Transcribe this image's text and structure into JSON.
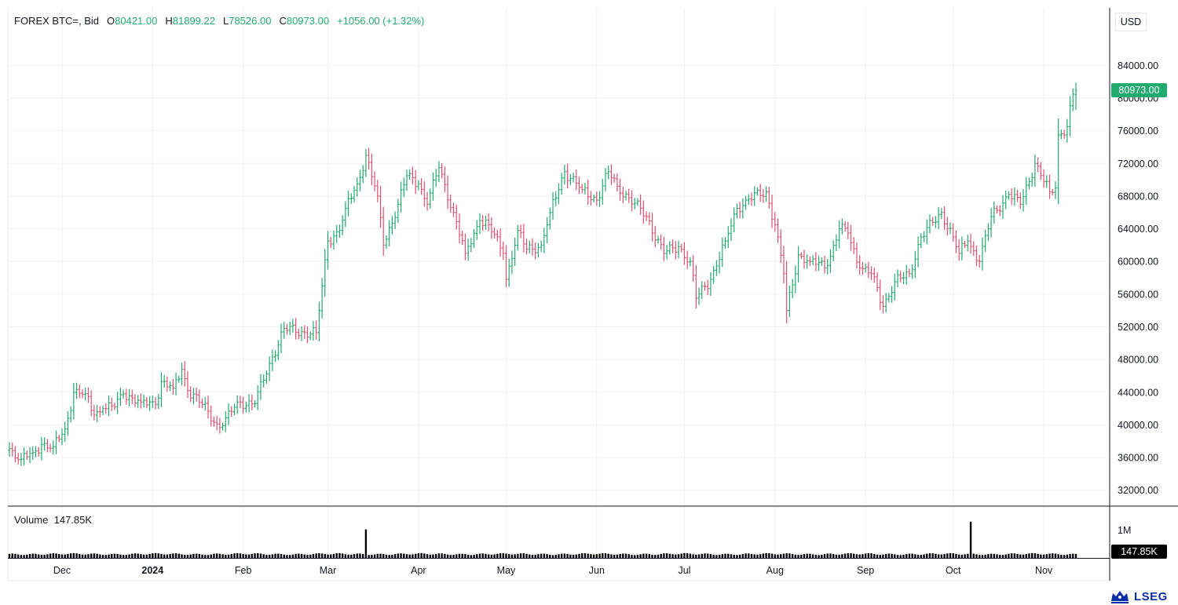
{
  "header": {
    "symbol": "FOREX BTC=, Bid",
    "open_label": "O",
    "open": "80421.00",
    "high_label": "H",
    "high": "81899.22",
    "low_label": "L",
    "low": "78526.00",
    "close_label": "C",
    "close": "80973.00",
    "change": "+1056.00 (+1.32%)"
  },
  "currency": "USD",
  "current_price_badge": "80973.00",
  "volume": {
    "label": "Volume",
    "value": "147.85K",
    "badge": "147.85K",
    "axis_tick": "1M"
  },
  "logo": {
    "text": "LSEG"
  },
  "colors": {
    "up": "#22ab6e",
    "down": "#e0506e",
    "grid": "#f0f2f5",
    "volume": "#000000",
    "badge_up": "#22ab6e"
  },
  "chart_data": {
    "type": "ohlc",
    "title": "FOREX BTC=, Bid",
    "ylabel": "USD",
    "ylim": [
      30000,
      86000
    ],
    "grid": true,
    "y_ticks": [
      "84000.00",
      "80000.00",
      "76000.00",
      "72000.00",
      "68000.00",
      "64000.00",
      "60000.00",
      "56000.00",
      "52000.00",
      "48000.00",
      "44000.00",
      "40000.00",
      "36000.00",
      "32000.00"
    ],
    "x_ticks": [
      "Dec",
      "2024",
      "Feb",
      "Mar",
      "Apr",
      "May",
      "Jun",
      "Jul",
      "Aug",
      "Sep",
      "Oct",
      "Nov"
    ],
    "x_tick_dates": [
      "2023-12-01",
      "2024-01-01",
      "2024-02-01",
      "2024-03-01",
      "2024-04-01",
      "2024-05-01",
      "2024-06-01",
      "2024-07-01",
      "2024-08-01",
      "2024-09-01",
      "2024-10-01",
      "2024-11-01"
    ],
    "start_date": "2023-11-13",
    "end_date": "2024-11-12",
    "anchors": [
      [
        "2023-11-13",
        37100
      ],
      [
        "2023-11-17",
        35800
      ],
      [
        "2023-11-21",
        36600
      ],
      [
        "2023-11-24",
        37600
      ],
      [
        "2023-11-28",
        37300
      ],
      [
        "2023-12-02",
        39500
      ],
      [
        "2023-12-05",
        44000
      ],
      [
        "2023-12-09",
        43800
      ],
      [
        "2023-12-12",
        41200
      ],
      [
        "2023-12-15",
        42000
      ],
      [
        "2023-12-19",
        42200
      ],
      [
        "2023-12-22",
        43800
      ],
      [
        "2023-12-28",
        42800
      ],
      [
        "2024-01-02",
        42500
      ],
      [
        "2024-01-04",
        45300
      ],
      [
        "2024-01-08",
        44500
      ],
      [
        "2024-01-11",
        46800
      ],
      [
        "2024-01-13",
        44200
      ],
      [
        "2024-01-18",
        42500
      ],
      [
        "2024-01-23",
        40100
      ],
      [
        "2024-01-25",
        39900
      ],
      [
        "2024-01-30",
        42800
      ],
      [
        "2024-02-05",
        42600
      ],
      [
        "2024-02-10",
        47500
      ],
      [
        "2024-02-15",
        51800
      ],
      [
        "2024-02-22",
        51300
      ],
      [
        "2024-02-26",
        51300
      ],
      [
        "2024-02-28",
        57000
      ],
      [
        "2024-03-01",
        62500
      ],
      [
        "2024-03-05",
        63800
      ],
      [
        "2024-03-07",
        66500
      ],
      [
        "2024-03-11",
        69500
      ],
      [
        "2024-03-14",
        73000
      ],
      [
        "2024-03-18",
        68000
      ],
      [
        "2024-03-20",
        62000
      ],
      [
        "2024-03-25",
        67000
      ],
      [
        "2024-03-28",
        70500
      ],
      [
        "2024-04-01",
        69500
      ],
      [
        "2024-04-04",
        67000
      ],
      [
        "2024-04-08",
        71500
      ],
      [
        "2024-04-13",
        66000
      ],
      [
        "2024-04-17",
        61000
      ],
      [
        "2024-04-22",
        65000
      ],
      [
        "2024-04-25",
        64500
      ],
      [
        "2024-04-30",
        61000
      ],
      [
        "2024-05-01",
        57800
      ],
      [
        "2024-05-05",
        63800
      ],
      [
        "2024-05-08",
        61500
      ],
      [
        "2024-05-13",
        62000
      ],
      [
        "2024-05-16",
        66000
      ],
      [
        "2024-05-21",
        71000
      ],
      [
        "2024-05-27",
        68800
      ],
      [
        "2024-06-01",
        67500
      ],
      [
        "2024-06-05",
        71000
      ],
      [
        "2024-06-08",
        69200
      ],
      [
        "2024-06-12",
        67800
      ],
      [
        "2024-06-18",
        65500
      ],
      [
        "2024-06-24",
        61000
      ],
      [
        "2024-06-29",
        61800
      ],
      [
        "2024-07-03",
        60000
      ],
      [
        "2024-07-05",
        55500
      ],
      [
        "2024-07-10",
        57800
      ],
      [
        "2024-07-15",
        62500
      ],
      [
        "2024-07-19",
        66500
      ],
      [
        "2024-07-22",
        67500
      ],
      [
        "2024-07-29",
        68500
      ],
      [
        "2024-08-01",
        64500
      ],
      [
        "2024-08-04",
        58500
      ],
      [
        "2024-08-05",
        54000
      ],
      [
        "2024-08-09",
        60800
      ],
      [
        "2024-08-13",
        60000
      ],
      [
        "2024-08-19",
        59500
      ],
      [
        "2024-08-23",
        64000
      ],
      [
        "2024-08-26",
        63500
      ],
      [
        "2024-08-30",
        59200
      ],
      [
        "2024-09-03",
        58500
      ],
      [
        "2024-09-07",
        54500
      ],
      [
        "2024-09-11",
        57500
      ],
      [
        "2024-09-16",
        58500
      ],
      [
        "2024-09-20",
        63000
      ],
      [
        "2024-09-27",
        66000
      ],
      [
        "2024-10-01",
        63000
      ],
      [
        "2024-10-03",
        61000
      ],
      [
        "2024-10-06",
        62500
      ],
      [
        "2024-10-10",
        60000
      ],
      [
        "2024-10-14",
        65500
      ],
      [
        "2024-10-20",
        68200
      ],
      [
        "2024-10-24",
        67000
      ],
      [
        "2024-10-29",
        72000
      ],
      [
        "2024-11-03",
        68500
      ],
      [
        "2024-11-05",
        69000
      ],
      [
        "2024-11-06",
        75500
      ],
      [
        "2024-11-09",
        76500
      ],
      [
        "2024-11-11",
        80500
      ],
      [
        "2024-11-12",
        80973
      ]
    ],
    "latest_bar": {
      "open": 80421.0,
      "high": 81899.22,
      "low": 78526.0,
      "close": 80973.0
    },
    "volume_series": {
      "typical": 147850,
      "axis_tick_value": 1000000,
      "spikes": [
        [
          "2024-03-14",
          1100000
        ],
        [
          "2024-10-07",
          1400000
        ]
      ]
    }
  }
}
